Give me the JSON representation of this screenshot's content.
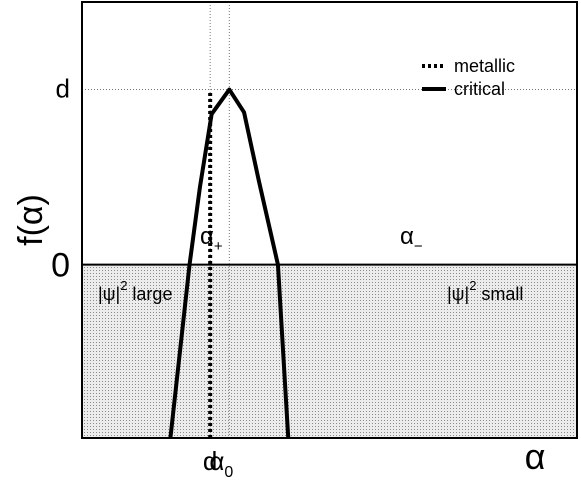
{
  "chart_data": {
    "type": "line",
    "title": "",
    "xlabel": "α",
    "ylabel": "f(α)",
    "yticks": [
      {
        "label": "d",
        "value": 1
      },
      {
        "label": "0",
        "value": 0
      }
    ],
    "xticks": [
      {
        "label": "d",
        "sub": "",
        "value": 0.87
      },
      {
        "label": "α",
        "sub": "0",
        "value": 1.0
      }
    ],
    "xlim": [
      0,
      3.36
    ],
    "ylim": [
      -0.99,
      1.5
    ],
    "series": [
      {
        "name": "critical",
        "style": "solid",
        "x": [
          0.6,
          0.73,
          0.8,
          0.88,
          1.0,
          1.1,
          1.2,
          1.33,
          1.4
        ],
        "y": [
          -0.99,
          0.0,
          0.44,
          0.86,
          1.0,
          0.87,
          0.48,
          0.0,
          -0.99
        ]
      },
      {
        "name": "metallic",
        "style": "dotted",
        "x": [
          0.87,
          0.87
        ],
        "y": [
          -0.99,
          0.99
        ]
      }
    ],
    "region_labels": {
      "left_root": {
        "base": "α",
        "sub": "+"
      },
      "right_root": {
        "base": "α",
        "sub": "−"
      },
      "negative_left": {
        "prefix": "|ψ|",
        "sup": "2",
        "suffix": " large"
      },
      "negative_right": {
        "prefix": "|ψ|",
        "sup": "2",
        "suffix": " small"
      }
    },
    "legend": {
      "position": "top-right",
      "entries": [
        {
          "name": "metallic",
          "style": "dotted"
        },
        {
          "name": "critical",
          "style": "solid"
        }
      ]
    },
    "shaded_region": "f < 0",
    "grid": false,
    "colors": {
      "line": "#000000",
      "shade": "#e6e6e6",
      "frame": "#000000"
    }
  }
}
